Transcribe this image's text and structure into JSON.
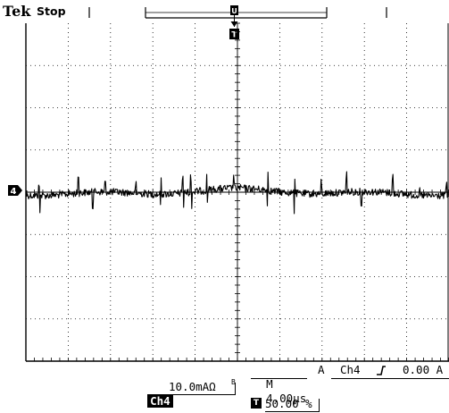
{
  "header": {
    "brand": "Tek",
    "acq_state": "Stop",
    "trigger_position_marker": "U",
    "trigger_marker": "T"
  },
  "channel": {
    "marker": "4",
    "name": "Ch4",
    "scale": "10.0mAΩ",
    "bandwidth_icon": "B_w"
  },
  "timebase": {
    "label": "M",
    "value": "4.00µs"
  },
  "trigger": {
    "mode": "A",
    "source": "Ch4",
    "slope_icon": "rising-edge",
    "level": "0.00 A",
    "position_icon": "T",
    "position": "50.00 %"
  },
  "display": {
    "grid": "10x8",
    "trace_color": "#000000",
    "background": "#ffffff"
  }
}
